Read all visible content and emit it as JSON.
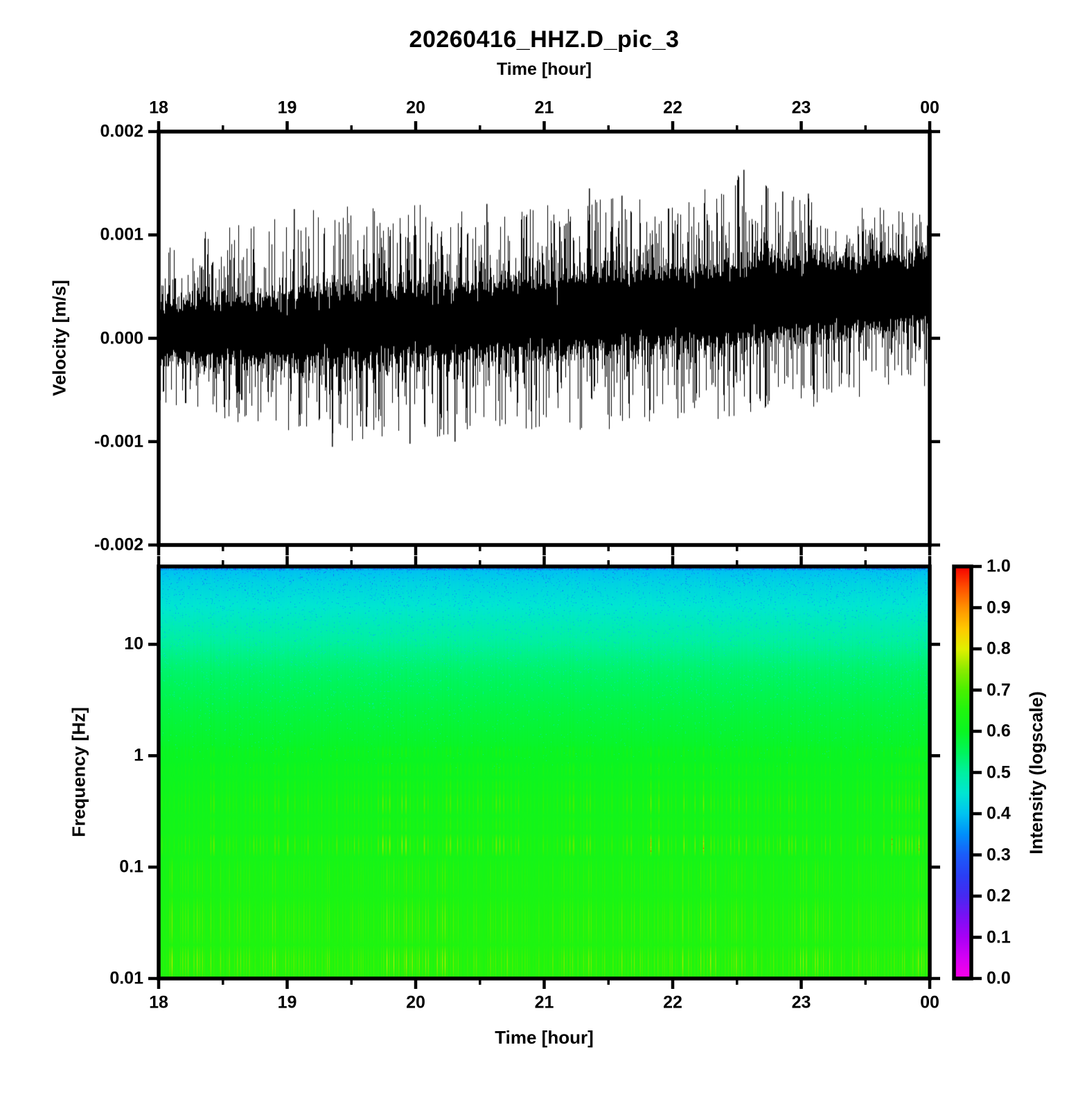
{
  "title": "20260416_HHZ.D_pic_3",
  "top_axis": {
    "label": "Time [hour]",
    "tick_labels": [
      "18",
      "19",
      "20",
      "21",
      "22",
      "23",
      "00"
    ],
    "tick_hours": [
      18,
      19,
      20,
      21,
      22,
      23,
      24
    ],
    "minor_interval_hours": 0.5
  },
  "bottom_axis": {
    "label": "Time [hour]",
    "tick_labels": [
      "18",
      "19",
      "20",
      "21",
      "22",
      "23",
      "00"
    ],
    "tick_hours": [
      18,
      19,
      20,
      21,
      22,
      23,
      24
    ],
    "minor_interval_hours": 0.5
  },
  "waveform_panel": {
    "ylabel": "Velocity [m/s]",
    "ytick_labels": [
      "0.002",
      "0.001",
      "0.000",
      "-0.001",
      "-0.002"
    ],
    "ytick_values": [
      0.002,
      0.001,
      0.0,
      -0.001,
      -0.002
    ],
    "ylim": [
      -0.002,
      0.002
    ],
    "trace_color": "#000000"
  },
  "spectrogram_panel": {
    "ylabel": "Frequency [Hz]",
    "ytick_labels": [
      "10",
      "1",
      "0.1",
      "0.01"
    ],
    "ytick_values": [
      10,
      1,
      0.1,
      0.01
    ],
    "freq_lim_hz": [
      0.01,
      50
    ]
  },
  "colorbar": {
    "label": "Intensity (logscale)",
    "tick_labels": [
      "0.0",
      "0.1",
      "0.2",
      "0.3",
      "0.4",
      "0.5",
      "0.6",
      "0.7",
      "0.8",
      "0.9",
      "1.0"
    ],
    "tick_values": [
      0.0,
      0.1,
      0.2,
      0.3,
      0.4,
      0.5,
      0.6,
      0.7,
      0.8,
      0.9,
      1.0
    ],
    "stops": [
      [
        0,
        "#fa00e6"
      ],
      [
        0.05,
        "#d400f5"
      ],
      [
        0.1,
        "#a800f5"
      ],
      [
        0.15,
        "#7a10f5"
      ],
      [
        0.2,
        "#4629f0"
      ],
      [
        0.25,
        "#2a3ef5"
      ],
      [
        0.3,
        "#1b5cfa"
      ],
      [
        0.35,
        "#008ffa"
      ],
      [
        0.4,
        "#00c3f0"
      ],
      [
        0.45,
        "#00e6d2"
      ],
      [
        0.5,
        "#00f0a0"
      ],
      [
        0.55,
        "#00f55a"
      ],
      [
        0.6,
        "#0af522"
      ],
      [
        0.65,
        "#1ff50f"
      ],
      [
        0.7,
        "#49f000"
      ],
      [
        0.75,
        "#8ceb00"
      ],
      [
        0.8,
        "#e1ef00"
      ],
      [
        0.85,
        "#ffc800"
      ],
      [
        0.9,
        "#ff9100"
      ],
      [
        0.95,
        "#ff4d00"
      ],
      [
        1,
        "#f50000"
      ]
    ]
  },
  "chart_data": [
    {
      "type": "line",
      "name": "seismogram-trace",
      "title": "20260416_HHZ.D_pic_3",
      "xlabel": "Time [hour]",
      "ylabel": "Velocity [m/s]",
      "x_range_hours": [
        18,
        24
      ],
      "ylim": [
        -0.002,
        0.002
      ],
      "color": "#000000",
      "envelope": {
        "hours": [
          18,
          18.5,
          19,
          19.5,
          20,
          20.5,
          21,
          21.5,
          22,
          22.5,
          23,
          23.5,
          24
        ],
        "mean": [
          5e-05,
          7e-05,
          0.0001,
          0.00012,
          0.00015,
          0.00018,
          0.0002,
          0.00025,
          0.0003,
          0.00035,
          0.0004,
          0.00045,
          0.0005
        ],
        "core_sigma": [
          0.00013,
          0.00014,
          0.00015,
          0.000155,
          0.000155,
          0.00016,
          0.000165,
          0.000165,
          0.00017,
          0.000175,
          0.000175,
          0.00017,
          0.000165
        ],
        "peak_pos": [
          0.0009,
          0.0011,
          0.0012,
          0.0013,
          0.0013,
          0.0012,
          0.0013,
          0.0014,
          0.0013,
          0.0016,
          0.0014,
          0.0013,
          0.0012
        ],
        "peak_neg": [
          -0.0006,
          -0.0008,
          -0.0009,
          -0.00105,
          -0.001,
          -0.0009,
          -0.0009,
          -0.0009,
          -0.0008,
          -0.0008,
          -0.0007,
          -0.0006,
          -0.0005
        ]
      },
      "notable_spikes": [
        {
          "hour": 19.05,
          "v": 0.00125
        },
        {
          "hour": 19.35,
          "v": -0.00105
        },
        {
          "hour": 19.95,
          "v": -0.00102
        },
        {
          "hour": 20.3,
          "v": -0.001
        },
        {
          "hour": 20.55,
          "v": 0.0013
        },
        {
          "hour": 21.35,
          "v": 0.00145
        },
        {
          "hour": 21.6,
          "v": 0.00138
        },
        {
          "hour": 22.55,
          "v": 0.00163
        },
        {
          "hour": 22.85,
          "v": 0.00142
        },
        {
          "hour": 23.05,
          "v": 0.0014
        }
      ]
    },
    {
      "type": "heatmap",
      "name": "spectrogram",
      "xlabel": "Time [hour]",
      "ylabel": "Frequency [Hz]",
      "colorbar_label": "Intensity (logscale)",
      "x_range_hours": [
        18,
        24
      ],
      "freq_range_hz": [
        0.01,
        50
      ],
      "yscale": "log",
      "intensity_range": [
        0.0,
        1.0
      ],
      "base_intensity_profile": [
        [
          0,
          0.375
        ],
        [
          0.01,
          0.4
        ],
        [
          0.04,
          0.425
        ],
        [
          0.09,
          0.45
        ],
        [
          0.16,
          0.49
        ],
        [
          0.25,
          0.54
        ],
        [
          0.35,
          0.575
        ],
        [
          0.45,
          0.6
        ],
        [
          0.55,
          0.615
        ],
        [
          0.65,
          0.625
        ],
        [
          0.75,
          0.632
        ],
        [
          0.85,
          0.642
        ],
        [
          1,
          0.655
        ]
      ],
      "stripe_bands": [
        {
          "f0": 0.435,
          "f1": 0.465,
          "gain": 0.22,
          "fine": false,
          "flecks": false
        },
        {
          "f0": 0.475,
          "f1": 0.51,
          "gain": 0.28,
          "fine": false,
          "flecks": false
        },
        {
          "f0": 0.515,
          "f1": 0.55,
          "gain": 0.34,
          "fine": false,
          "flecks": false
        },
        {
          "f0": 0.545,
          "f1": 0.605,
          "gain": 0.52,
          "fine": false,
          "flecks": false
        },
        {
          "f0": 0.605,
          "f1": 0.648,
          "gain": 0.3,
          "fine": false,
          "flecks": false
        },
        {
          "f0": 0.648,
          "f1": 0.705,
          "gain": 0.66,
          "fine": false,
          "flecks": true
        },
        {
          "f0": 0.705,
          "f1": 0.8,
          "gain": 0.32,
          "fine": true,
          "flecks": false
        },
        {
          "f0": 0.8,
          "f1": 0.92,
          "gain": 0.42,
          "fine": true,
          "flecks": false
        },
        {
          "f0": 0.92,
          "f1": 1.0,
          "gain": 0.55,
          "fine": true,
          "flecks": false
        }
      ]
    }
  ]
}
